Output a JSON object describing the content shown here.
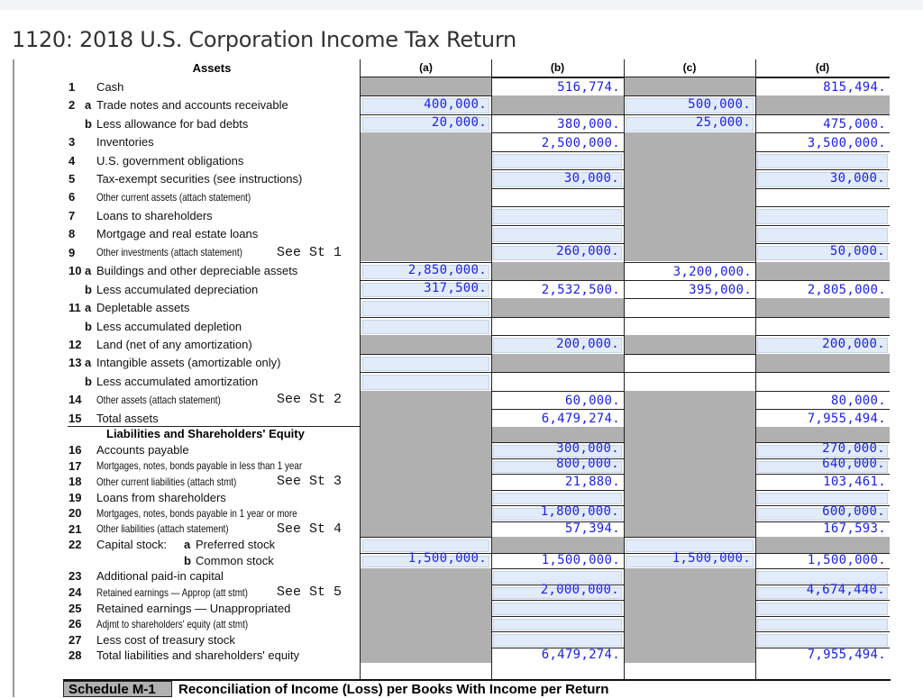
{
  "title": "1120: 2018 U.S. Corporation Income Tax Return",
  "columns": {
    "section": "Assets",
    "a": "(a)",
    "b": "(b)",
    "c": "(c)",
    "d": "(d)"
  },
  "liabilities_header": "Liabilities and Shareholders' Equity",
  "schedule": {
    "tag": "Schedule M-1",
    "title": "Reconciliation of Income (Loss) per Books With Income per Return"
  },
  "colors": {
    "value_text": "#1c22e6",
    "input_fill": "#e1ebf9",
    "disabled_fill": "#b0b0b0"
  },
  "rows": [
    {
      "num": "1",
      "sub": "",
      "label": "Cash",
      "see": "",
      "cells": [
        {
          "t": "g"
        },
        {
          "t": "w",
          "v": "516,774."
        },
        {
          "t": "g"
        },
        {
          "t": "w",
          "v": "815,494."
        }
      ]
    },
    {
      "num": "2",
      "sub": "a",
      "label": "Trade notes and accounts receivable",
      "see": "",
      "cells": [
        {
          "t": "i",
          "v": "400,000."
        },
        {
          "t": "g"
        },
        {
          "t": "i",
          "v": "500,000."
        },
        {
          "t": "g"
        }
      ]
    },
    {
      "num": "",
      "sub": "b",
      "label": "Less allowance for bad debts",
      "see": "",
      "cells": [
        {
          "t": "i",
          "v": "20,000."
        },
        {
          "t": "w",
          "v": "380,000."
        },
        {
          "t": "i",
          "v": "25,000."
        },
        {
          "t": "w",
          "v": "475,000."
        }
      ]
    },
    {
      "num": "3",
      "sub": "",
      "label": "Inventories",
      "see": "",
      "cells": [
        {
          "t": "g"
        },
        {
          "t": "w",
          "v": "2,500,000."
        },
        {
          "t": "g"
        },
        {
          "t": "w",
          "v": "3,500,000."
        }
      ]
    },
    {
      "num": "4",
      "sub": "",
      "label": "U.S. government obligations",
      "see": "",
      "cells": [
        {
          "t": "g"
        },
        {
          "t": "i"
        },
        {
          "t": "g"
        },
        {
          "t": "i"
        }
      ]
    },
    {
      "num": "5",
      "sub": "",
      "label": "Tax-exempt securities (see instructions)",
      "see": "",
      "cells": [
        {
          "t": "g"
        },
        {
          "t": "i",
          "v": "30,000."
        },
        {
          "t": "g"
        },
        {
          "t": "i",
          "v": "30,000."
        }
      ]
    },
    {
      "num": "6",
      "sub": "",
      "label": "Other current assets (attach statement)",
      "see": "",
      "cells": [
        {
          "t": "g"
        },
        {
          "t": "w"
        },
        {
          "t": "g"
        },
        {
          "t": "w"
        }
      ]
    },
    {
      "num": "7",
      "sub": "",
      "label": "Loans to shareholders",
      "see": "",
      "cells": [
        {
          "t": "g"
        },
        {
          "t": "i"
        },
        {
          "t": "g"
        },
        {
          "t": "i"
        }
      ]
    },
    {
      "num": "8",
      "sub": "",
      "label": "Mortgage and real estate loans",
      "see": "",
      "cells": [
        {
          "t": "g"
        },
        {
          "t": "i"
        },
        {
          "t": "g"
        },
        {
          "t": "i"
        }
      ]
    },
    {
      "num": "9",
      "sub": "",
      "label": "Other investments (attach statement)",
      "see": "See St 1",
      "cells": [
        {
          "t": "g"
        },
        {
          "t": "i",
          "v": "260,000."
        },
        {
          "t": "g"
        },
        {
          "t": "i",
          "v": "50,000."
        }
      ]
    },
    {
      "num": "10",
      "sub": "a",
      "label": "Buildings and other depreciable assets",
      "see": "",
      "cells": [
        {
          "t": "i",
          "v": "2,850,000."
        },
        {
          "t": "g"
        },
        {
          "t": "w",
          "v": "3,200,000."
        },
        {
          "t": "g"
        }
      ]
    },
    {
      "num": "",
      "sub": "b",
      "label": "Less accumulated depreciation",
      "see": "",
      "cells": [
        {
          "t": "i",
          "v": "317,500."
        },
        {
          "t": "w",
          "v": "2,532,500."
        },
        {
          "t": "w",
          "v": "395,000."
        },
        {
          "t": "w",
          "v": "2,805,000."
        }
      ]
    },
    {
      "num": "11",
      "sub": "a",
      "label": "Depletable assets",
      "see": "",
      "cells": [
        {
          "t": "i"
        },
        {
          "t": "g"
        },
        {
          "t": "w"
        },
        {
          "t": "g"
        }
      ]
    },
    {
      "num": "",
      "sub": "b",
      "label": "Less accumulated depletion",
      "see": "",
      "cells": [
        {
          "t": "i"
        },
        {
          "t": "w"
        },
        {
          "t": "w"
        },
        {
          "t": "w"
        }
      ]
    },
    {
      "num": "12",
      "sub": "",
      "label": "Land (net of any amortization)",
      "see": "",
      "cells": [
        {
          "t": "g"
        },
        {
          "t": "i",
          "v": "200,000."
        },
        {
          "t": "g"
        },
        {
          "t": "i",
          "v": "200,000."
        }
      ]
    },
    {
      "num": "13",
      "sub": "a",
      "label": "Intangible assets (amortizable only)",
      "see": "",
      "cells": [
        {
          "t": "i"
        },
        {
          "t": "g"
        },
        {
          "t": "w"
        },
        {
          "t": "g"
        }
      ]
    },
    {
      "num": "",
      "sub": "b",
      "label": "Less accumulated amortization",
      "see": "",
      "cells": [
        {
          "t": "i"
        },
        {
          "t": "w"
        },
        {
          "t": "w"
        },
        {
          "t": "w"
        }
      ]
    },
    {
      "num": "14",
      "sub": "",
      "label": "Other assets (attach statement)",
      "see": "See St 2",
      "cells": [
        {
          "t": "g"
        },
        {
          "t": "w",
          "v": "60,000."
        },
        {
          "t": "g"
        },
        {
          "t": "w",
          "v": "80,000."
        }
      ]
    },
    {
      "num": "15",
      "sub": "",
      "label": "Total assets",
      "see": "",
      "cells": [
        {
          "t": "g"
        },
        {
          "t": "w",
          "v": "6,479,274."
        },
        {
          "t": "g"
        },
        {
          "t": "w",
          "v": "7,955,494."
        }
      ]
    },
    {
      "num": "",
      "sub": "",
      "label": "",
      "see": "",
      "cells": [
        {
          "t": "g"
        },
        {
          "t": "g"
        },
        {
          "t": "g"
        },
        {
          "t": "g"
        }
      ]
    },
    {
      "num": "16",
      "sub": "",
      "label": "Accounts payable",
      "see": "",
      "cells": [
        {
          "t": "g"
        },
        {
          "t": "i",
          "v": "300,000."
        },
        {
          "t": "g"
        },
        {
          "t": "i",
          "v": "270,000."
        }
      ]
    },
    {
      "num": "17",
      "sub": "",
      "label": "Mortgages, notes, bonds payable in less than 1 year",
      "see": "",
      "cells": [
        {
          "t": "g"
        },
        {
          "t": "i",
          "v": "800,000."
        },
        {
          "t": "g"
        },
        {
          "t": "i",
          "v": "640,000."
        }
      ]
    },
    {
      "num": "18",
      "sub": "",
      "label": "Other current liabilities (attach stmt)",
      "see": "See St 3",
      "cells": [
        {
          "t": "g"
        },
        {
          "t": "w",
          "v": "21,880."
        },
        {
          "t": "g"
        },
        {
          "t": "w",
          "v": "103,461."
        }
      ]
    },
    {
      "num": "19",
      "sub": "",
      "label": "Loans from shareholders",
      "see": "",
      "cells": [
        {
          "t": "g"
        },
        {
          "t": "i"
        },
        {
          "t": "g"
        },
        {
          "t": "i"
        }
      ]
    },
    {
      "num": "20",
      "sub": "",
      "label": "Mortgages, notes, bonds payable in 1 year or more",
      "see": "",
      "cells": [
        {
          "t": "g"
        },
        {
          "t": "i",
          "v": "1,800,000."
        },
        {
          "t": "g"
        },
        {
          "t": "i",
          "v": "600,000."
        }
      ]
    },
    {
      "num": "21",
      "sub": "",
      "label": "Other liabilities (attach statement)",
      "see": "See St 4",
      "cells": [
        {
          "t": "g"
        },
        {
          "t": "w",
          "v": "57,394."
        },
        {
          "t": "g"
        },
        {
          "t": "w",
          "v": "167,593."
        }
      ]
    },
    {
      "num": "22",
      "sub": "",
      "label": "Capital stock:",
      "sub2": "a",
      "label2": "Preferred stock",
      "see": "",
      "cells": [
        {
          "t": "i"
        },
        {
          "t": "g"
        },
        {
          "t": "i"
        },
        {
          "t": "g"
        }
      ]
    },
    {
      "num": "",
      "sub": "",
      "label": "",
      "sub2": "b",
      "label2": "Common stock",
      "see": "",
      "cells": [
        {
          "t": "i",
          "v": "1,500,000."
        },
        {
          "t": "w",
          "v": "1,500,000."
        },
        {
          "t": "i",
          "v": "1,500,000."
        },
        {
          "t": "w",
          "v": "1,500,000."
        }
      ]
    },
    {
      "num": "23",
      "sub": "",
      "label": "Additional paid-in capital",
      "see": "",
      "cells": [
        {
          "t": "g"
        },
        {
          "t": "i"
        },
        {
          "t": "g"
        },
        {
          "t": "i"
        }
      ]
    },
    {
      "num": "24",
      "sub": "",
      "label": "Retained earnings — Approp (att stmt)",
      "see": "See St 5",
      "cells": [
        {
          "t": "g"
        },
        {
          "t": "i",
          "v": "2,000,000."
        },
        {
          "t": "g"
        },
        {
          "t": "i",
          "v": "4,674,440."
        }
      ]
    },
    {
      "num": "25",
      "sub": "",
      "label": "Retained earnings — Unappropriated",
      "see": "",
      "cells": [
        {
          "t": "g"
        },
        {
          "t": "i"
        },
        {
          "t": "g"
        },
        {
          "t": "i"
        }
      ]
    },
    {
      "num": "26",
      "sub": "",
      "label": "Adjmt to shareholders' equity (att stmt)",
      "see": "",
      "cells": [
        {
          "t": "g"
        },
        {
          "t": "i"
        },
        {
          "t": "g"
        },
        {
          "t": "i"
        }
      ]
    },
    {
      "num": "27",
      "sub": "",
      "label": "Less cost of treasury stock",
      "see": "",
      "cells": [
        {
          "t": "g"
        },
        {
          "t": "i"
        },
        {
          "t": "g"
        },
        {
          "t": "i"
        }
      ]
    },
    {
      "num": "28",
      "sub": "",
      "label": "Total liabilities and shareholders' equity",
      "see": "",
      "cells": [
        {
          "t": "g"
        },
        {
          "t": "w",
          "v": "6,479,274."
        },
        {
          "t": "g"
        },
        {
          "t": "w",
          "v": "7,955,494."
        }
      ]
    }
  ]
}
